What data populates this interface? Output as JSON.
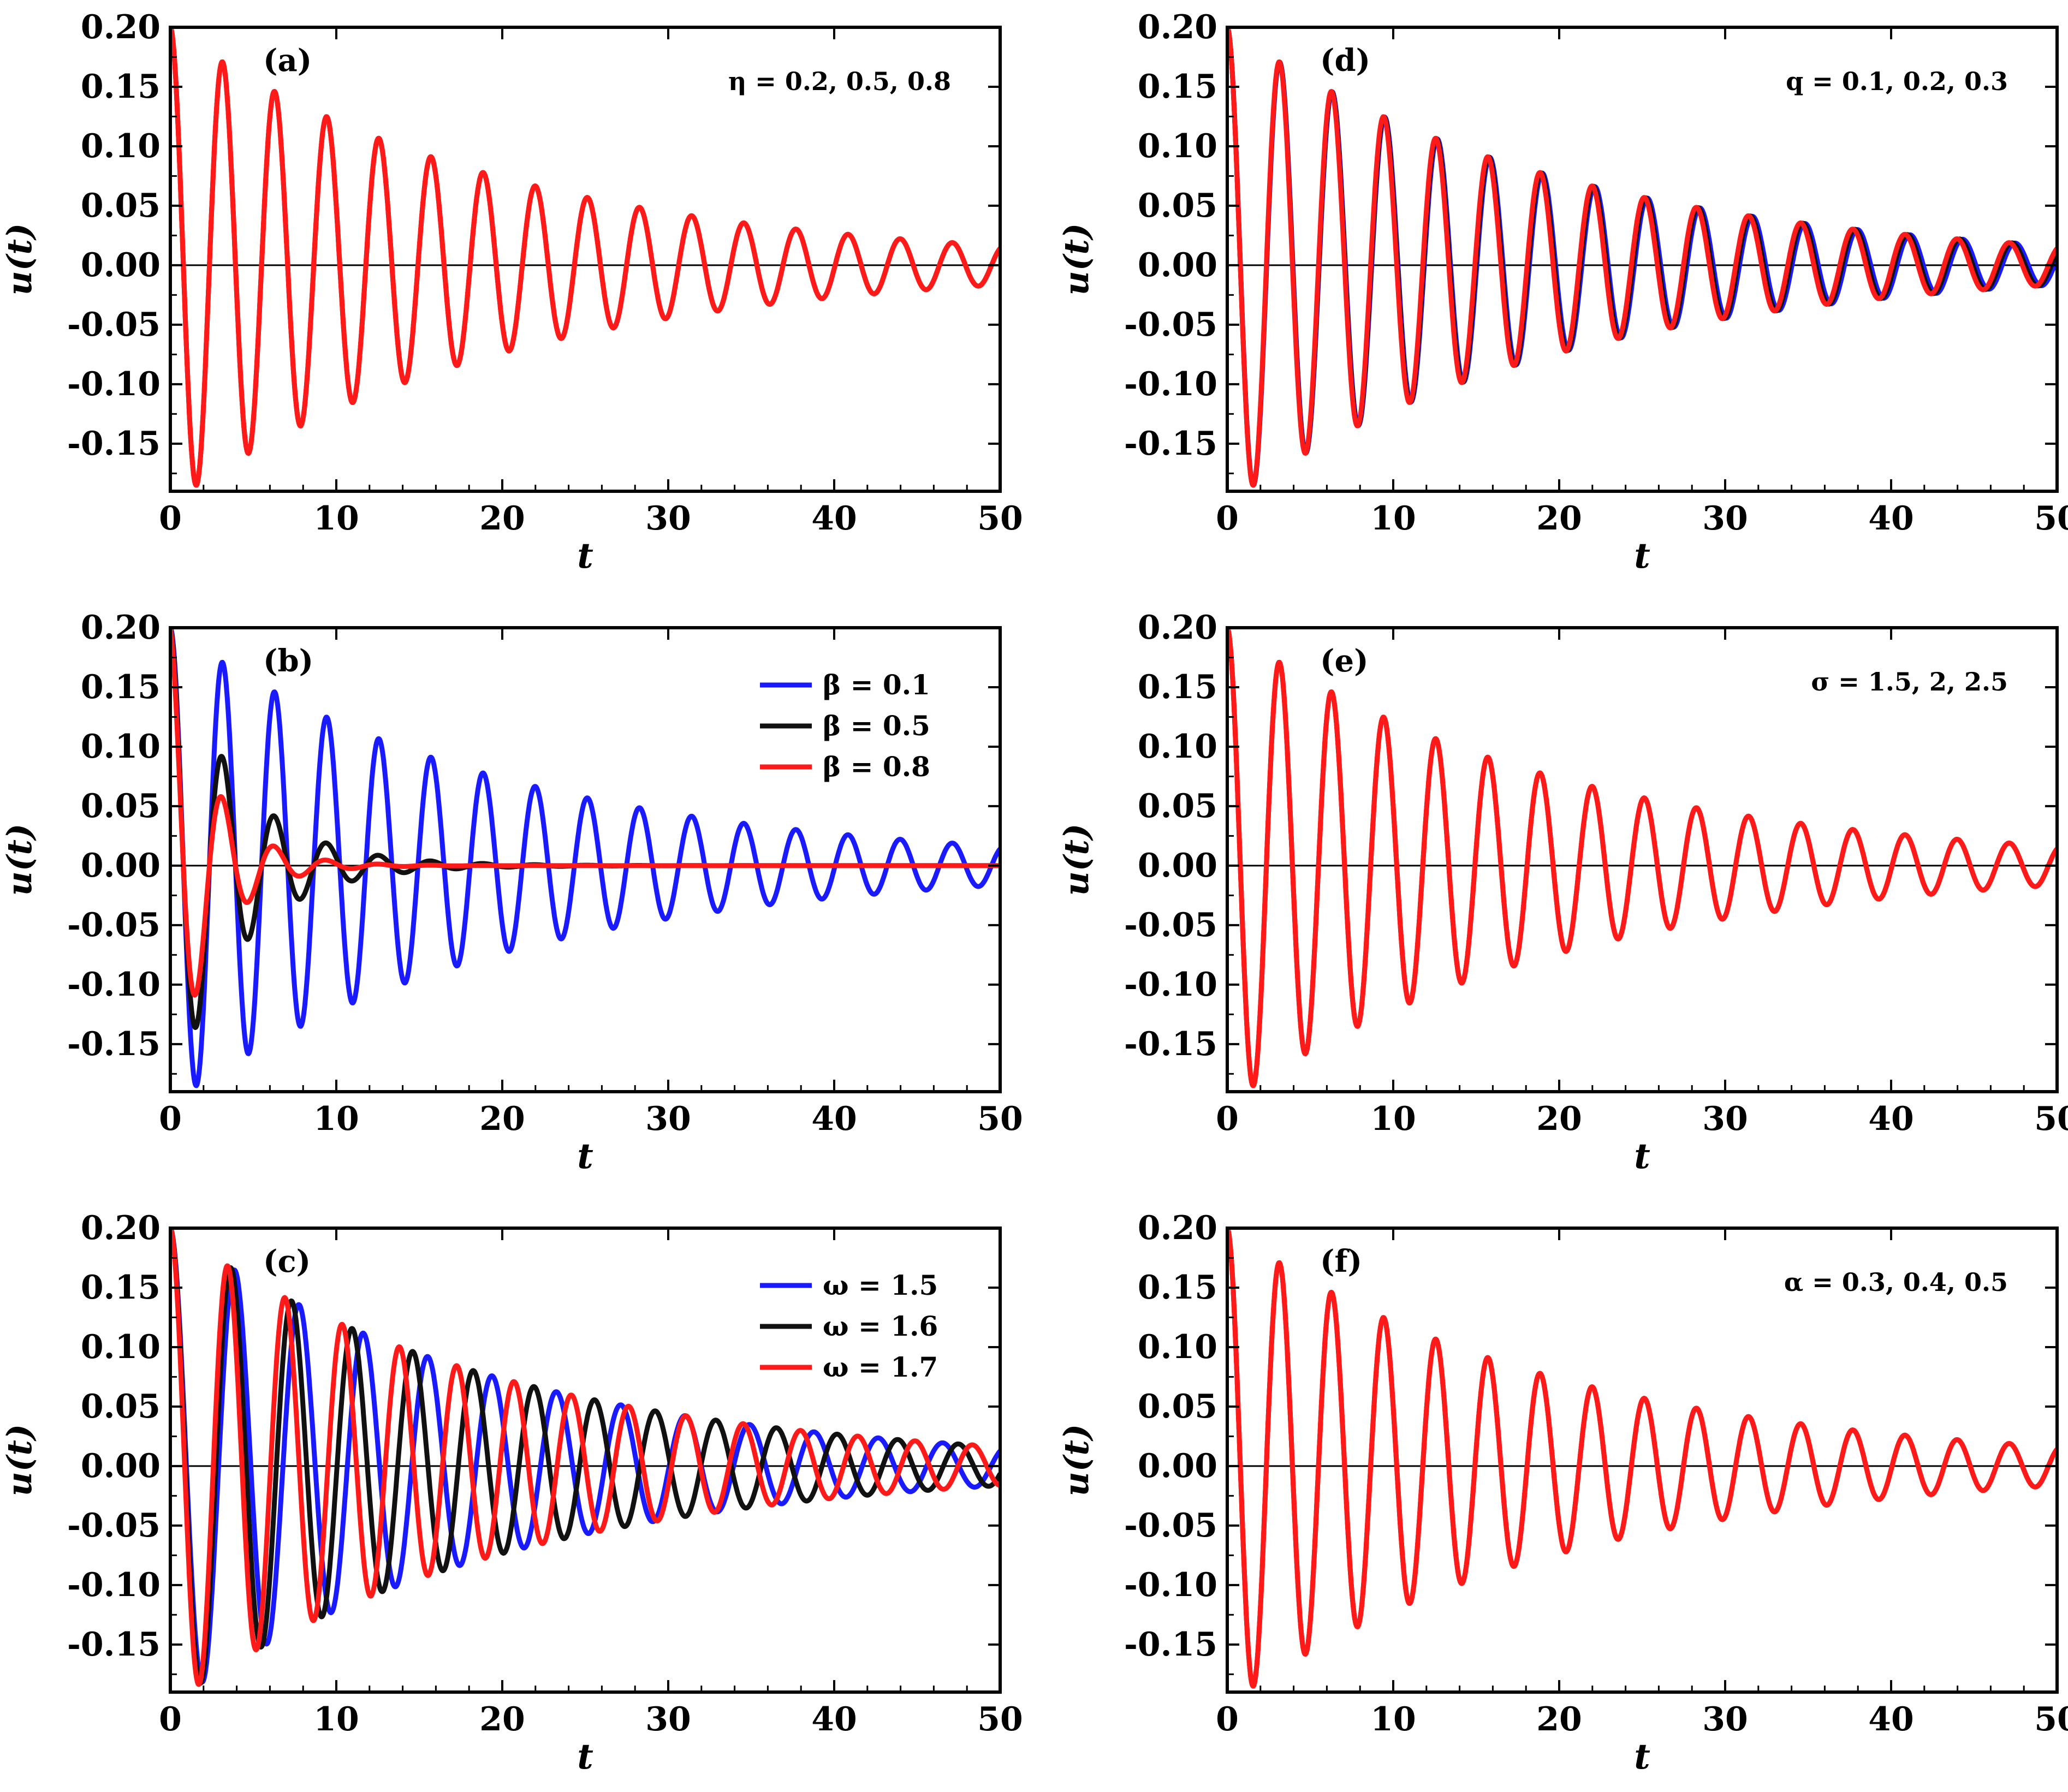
{
  "figure": {
    "y_ticks": [
      "0.20",
      "0.15",
      "0.10",
      "0.05",
      "0.00",
      "-0.05",
      "-0.10",
      "-0.15"
    ],
    "x_ticks": [
      "0",
      "10",
      "20",
      "30",
      "40",
      "50"
    ],
    "colors": {
      "blue": "#1a1aff",
      "black": "#111111",
      "red": "#ff1a1a"
    }
  },
  "chart_data": [
    {
      "type": "line",
      "panel": "(a)",
      "xlabel": "t",
      "ylabel": "u(t)",
      "xlim": [
        0,
        50
      ],
      "ylim": [
        -0.19,
        0.2
      ],
      "grid": false,
      "annotation": "η = 0.2, 0.5, 0.8",
      "legend": [],
      "series": [
        {
          "name": "η = 0.2",
          "color": "#ff1a1a",
          "model": "u(t)=0.2·exp(-0.05t)·cos(2t)"
        },
        {
          "name": "η = 0.5",
          "color": "#ff1a1a",
          "model": "u(t)=0.2·exp(-0.05t)·cos(2t)"
        },
        {
          "name": "η = 0.8",
          "color": "#ff1a1a",
          "model": "u(t)=0.2·exp(-0.05t)·cos(2t)"
        }
      ]
    },
    {
      "type": "line",
      "panel": "(b)",
      "xlabel": "t",
      "ylabel": "u(t)",
      "xlim": [
        0,
        50
      ],
      "ylim": [
        -0.19,
        0.2
      ],
      "grid": false,
      "annotation": "",
      "legend": [
        "β = 0.1",
        "β = 0.5",
        "β = 0.8"
      ],
      "series": [
        {
          "name": "β = 0.1",
          "color": "#1a1aff",
          "model": "u(t)=0.2·exp(-0.05t)·cos(2t)"
        },
        {
          "name": "β = 0.5",
          "color": "#111111",
          "model": "u(t)=0.2·exp(-0.25t)·cos(2t)"
        },
        {
          "name": "β = 0.8",
          "color": "#ff1a1a",
          "model": "u(t)=0.2·exp(-0.4t)·cos(2t)"
        }
      ]
    },
    {
      "type": "line",
      "panel": "(c)",
      "xlabel": "t",
      "ylabel": "u(t)",
      "xlim": [
        0,
        50
      ],
      "ylim": [
        -0.19,
        0.2
      ],
      "grid": false,
      "annotation": "",
      "legend": [
        "ω = 1.5",
        "ω = 1.6",
        "ω = 1.7"
      ],
      "series": [
        {
          "name": "ω = 1.5",
          "color": "#1a1aff",
          "model": "u(t)=0.2·exp(-0.05t)·cos(1.62t)"
        },
        {
          "name": "ω = 1.6",
          "color": "#111111",
          "model": "u(t)=0.2·exp(-0.05t)·cos(1.72t)"
        },
        {
          "name": "ω = 1.7",
          "color": "#ff1a1a",
          "model": "u(t)=0.2·exp(-0.05t)·cos(1.82t)"
        }
      ]
    },
    {
      "type": "line",
      "panel": "(d)",
      "xlabel": "t",
      "ylabel": "u(t)",
      "xlim": [
        0,
        50
      ],
      "ylim": [
        -0.19,
        0.2
      ],
      "grid": false,
      "annotation": "q = 0.1, 0.2, 0.3",
      "legend": [],
      "series": [
        {
          "name": "q = 0.1",
          "color": "#1a1aff",
          "model": "u(t)=0.2·exp(-0.05t)·cos(1.985t)"
        },
        {
          "name": "q = 0.2",
          "color": "#111111",
          "model": "u(t)=0.2·exp(-0.05t)·cos(1.993t)"
        },
        {
          "name": "q = 0.3",
          "color": "#ff1a1a",
          "model": "u(t)=0.2·exp(-0.05t)·cos(2t)"
        }
      ]
    },
    {
      "type": "line",
      "panel": "(e)",
      "xlabel": "t",
      "ylabel": "u(t)",
      "xlim": [
        0,
        50
      ],
      "ylim": [
        -0.19,
        0.2
      ],
      "grid": false,
      "annotation": "σ = 1.5, 2, 2.5",
      "legend": [],
      "series": [
        {
          "name": "σ = 1.5",
          "color": "#ff1a1a",
          "model": "u(t)=0.2·exp(-0.05t)·cos(2t)"
        },
        {
          "name": "σ = 2",
          "color": "#ff1a1a",
          "model": "u(t)=0.2·exp(-0.05t)·cos(2t)"
        },
        {
          "name": "σ = 2.5",
          "color": "#ff1a1a",
          "model": "u(t)=0.2·exp(-0.05t)·cos(2t)"
        }
      ]
    },
    {
      "type": "line",
      "panel": "(f)",
      "xlabel": "t",
      "ylabel": "u(t)",
      "xlim": [
        0,
        50
      ],
      "ylim": [
        -0.19,
        0.2
      ],
      "grid": false,
      "annotation": "α = 0.3, 0.4, 0.5",
      "legend": [],
      "series": [
        {
          "name": "α = 0.3",
          "color": "#ff1a1a",
          "model": "u(t)=0.2·exp(-0.05t)·cos(2t)"
        },
        {
          "name": "α = 0.4",
          "color": "#ff1a1a",
          "model": "u(t)=0.2·exp(-0.05t)·cos(2t)"
        },
        {
          "name": "α = 0.5",
          "color": "#ff1a1a",
          "model": "u(t)=0.2·exp(-0.05t)·cos(2t)"
        }
      ]
    }
  ]
}
